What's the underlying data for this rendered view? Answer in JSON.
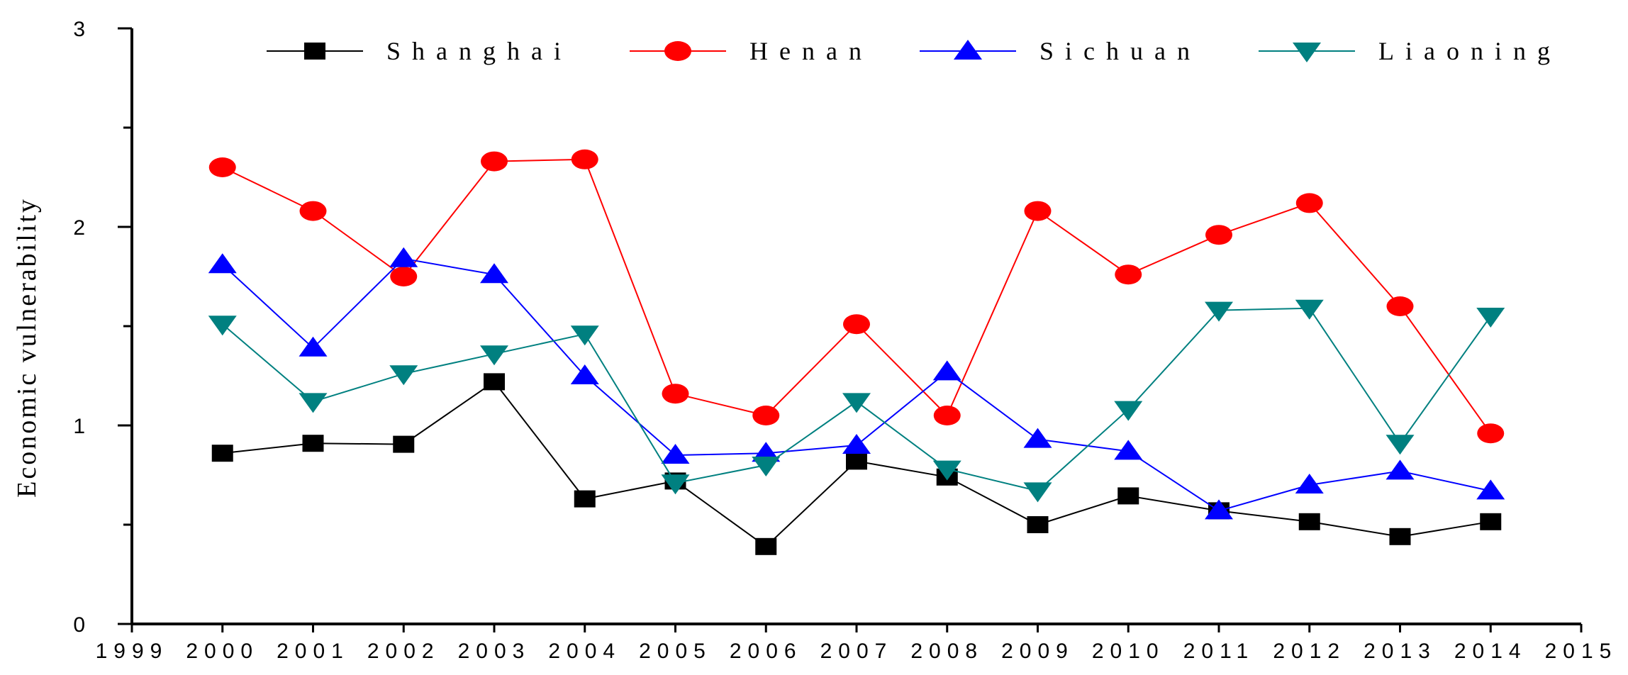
{
  "chart_data": {
    "type": "line",
    "title": "",
    "xlabel": "",
    "ylabel": "Economic vulnerability",
    "xlim": [
      1999,
      2015
    ],
    "ylim": [
      0,
      3
    ],
    "xticks": [
      "1999",
      "2000",
      "2001",
      "2002",
      "2003",
      "2004",
      "2005",
      "2006",
      "2007",
      "2008",
      "2009",
      "2010",
      "2011",
      "2012",
      "2013",
      "2014",
      "2015"
    ],
    "yticks": [
      "0",
      "1",
      "2",
      "3"
    ],
    "grid": false,
    "legend": "top",
    "x": [
      2000,
      2001,
      2002,
      2003,
      2004,
      2005,
      2006,
      2007,
      2008,
      2009,
      2010,
      2011,
      2012,
      2013,
      2014
    ],
    "series": [
      {
        "name": "Shanghai",
        "color": "#000000",
        "marker": "square",
        "values": [
          0.86,
          0.91,
          0.905,
          1.22,
          0.63,
          0.72,
          0.39,
          0.82,
          0.74,
          0.5,
          0.645,
          0.57,
          0.515,
          0.44,
          0.515
        ]
      },
      {
        "name": "Henan",
        "color": "#ff0000",
        "marker": "circle",
        "values": [
          2.3,
          2.08,
          1.75,
          2.33,
          2.34,
          1.16,
          1.05,
          1.51,
          1.05,
          2.08,
          1.76,
          1.96,
          2.12,
          1.6,
          0.96
        ]
      },
      {
        "name": "Sichuan",
        "color": "#0000ff",
        "marker": "triangle-up",
        "values": [
          1.81,
          1.39,
          1.84,
          1.76,
          1.25,
          0.85,
          0.86,
          0.9,
          1.27,
          0.93,
          0.87,
          0.57,
          0.7,
          0.77,
          0.67
        ]
      },
      {
        "name": "Liaoning",
        "color": "#008080",
        "marker": "triangle-down",
        "values": [
          1.51,
          1.12,
          1.26,
          1.36,
          1.46,
          0.71,
          0.8,
          1.12,
          0.78,
          0.67,
          1.08,
          1.58,
          1.59,
          0.91,
          1.55
        ]
      }
    ]
  }
}
